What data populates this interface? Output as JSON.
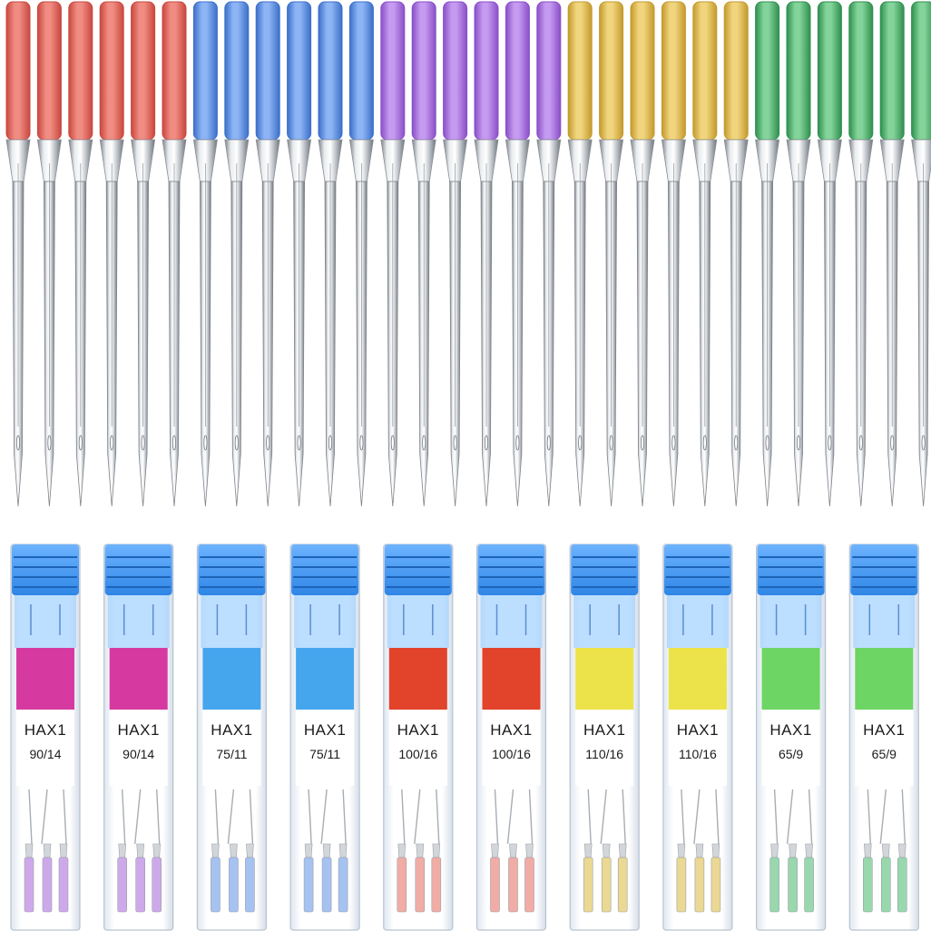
{
  "needles": {
    "groups": [
      {
        "color": "red",
        "shank_hex": "#c9483f",
        "shank_light": "#f08c82",
        "count": 6
      },
      {
        "color": "blue",
        "shank_hex": "#3b6fc9",
        "shank_light": "#8db4f4",
        "count": 6
      },
      {
        "color": "purple",
        "shank_hex": "#8a4fc7",
        "shank_light": "#c59af0",
        "count": 6
      },
      {
        "color": "gold",
        "shank_hex": "#c49a2c",
        "shank_light": "#f1d57e",
        "count": 6
      },
      {
        "color": "green",
        "shank_hex": "#2f8f4e",
        "shank_light": "#83d49a",
        "count": 6
      }
    ]
  },
  "cases": [
    {
      "brand": "HAX1",
      "size": "90/14",
      "label_color": "#d63aa1",
      "needle_tint": "#c9a0e8"
    },
    {
      "brand": "HAX1",
      "size": "90/14",
      "label_color": "#d63aa1",
      "needle_tint": "#c9a0e8"
    },
    {
      "brand": "HAX1",
      "size": "75/11",
      "label_color": "#45a6ee",
      "needle_tint": "#9cbcf0"
    },
    {
      "brand": "HAX1",
      "size": "75/11",
      "label_color": "#45a6ee",
      "needle_tint": "#9cbcf0"
    },
    {
      "brand": "HAX1",
      "size": "100/16",
      "label_color": "#e2432b",
      "needle_tint": "#f0a49c"
    },
    {
      "brand": "HAX1",
      "size": "100/16",
      "label_color": "#e2432b",
      "needle_tint": "#f0a49c"
    },
    {
      "brand": "HAX1",
      "size": "110/16",
      "label_color": "#ece34a",
      "needle_tint": "#e8d488"
    },
    {
      "brand": "HAX1",
      "size": "110/16",
      "label_color": "#ece34a",
      "needle_tint": "#e8d488"
    },
    {
      "brand": "HAX1",
      "size": "65/9",
      "label_color": "#6dd564",
      "needle_tint": "#8fd3a4"
    },
    {
      "brand": "HAX1",
      "size": "65/9",
      "label_color": "#6dd564",
      "needle_tint": "#8fd3a4"
    }
  ],
  "case_style": {
    "cap_color": "#2f86e6",
    "cap_light": "#6db3ff",
    "body_tint": "#eef4fb"
  }
}
